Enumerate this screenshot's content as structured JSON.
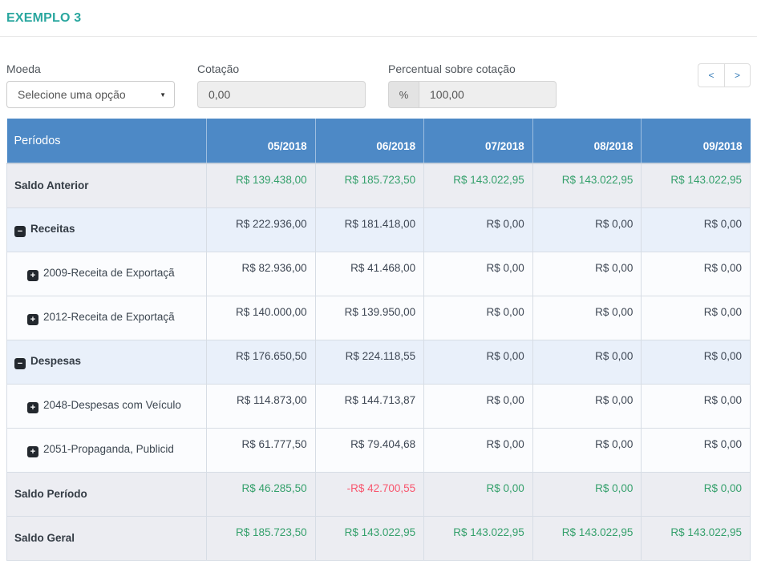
{
  "title": "EXEMPLO 3",
  "colors": {
    "header_blue": "#4d89c6",
    "title_teal": "#2aa79f",
    "green": "#34a06b",
    "red": "#f8566e",
    "link_blue": "#337ab7"
  },
  "form": {
    "moeda": {
      "label": "Moeda",
      "selected": "Selecione uma opção"
    },
    "cotacao": {
      "label": "Cotação",
      "value": "0,00"
    },
    "percentual": {
      "label": "Percentual sobre cotação",
      "addon": "%",
      "value": "100,00"
    },
    "prev_label": "<",
    "next_label": ">"
  },
  "table": {
    "header": {
      "label": "Períodos",
      "periods": [
        "05/2018",
        "06/2018",
        "07/2018",
        "08/2018",
        "09/2018"
      ]
    },
    "rows": [
      {
        "kind": "saldo",
        "icon": null,
        "label": "Saldo Anterior",
        "values": [
          "R$ 139.438,00",
          "R$ 185.723,50",
          "R$ 143.022,95",
          "R$ 143.022,95",
          "R$ 143.022,95"
        ],
        "value_colors": [
          "green",
          "green",
          "green",
          "green",
          "green"
        ]
      },
      {
        "kind": "group",
        "icon": "collapse",
        "label": "Receitas",
        "values": [
          "R$ 222.936,00",
          "R$ 181.418,00",
          "R$ 0,00",
          "R$ 0,00",
          "R$ 0,00"
        ],
        "value_colors": [
          "default",
          "default",
          "default",
          "default",
          "default"
        ]
      },
      {
        "kind": "child",
        "icon": "expand",
        "label": "2009-Receita de Exportaçã",
        "values": [
          "R$ 82.936,00",
          "R$ 41.468,00",
          "R$ 0,00",
          "R$ 0,00",
          "R$ 0,00"
        ],
        "value_colors": [
          "default",
          "default",
          "default",
          "default",
          "default"
        ]
      },
      {
        "kind": "child",
        "icon": "expand",
        "label": "2012-Receita de Exportaçã",
        "values": [
          "R$ 140.000,00",
          "R$ 139.950,00",
          "R$ 0,00",
          "R$ 0,00",
          "R$ 0,00"
        ],
        "value_colors": [
          "default",
          "default",
          "default",
          "default",
          "default"
        ]
      },
      {
        "kind": "group",
        "icon": "collapse",
        "label": "Despesas",
        "values": [
          "R$ 176.650,50",
          "R$ 224.118,55",
          "R$ 0,00",
          "R$ 0,00",
          "R$ 0,00"
        ],
        "value_colors": [
          "default",
          "default",
          "default",
          "default",
          "default"
        ]
      },
      {
        "kind": "child",
        "icon": "expand",
        "label": "2048-Despesas com Veículo",
        "values": [
          "R$ 114.873,00",
          "R$ 144.713,87",
          "R$ 0,00",
          "R$ 0,00",
          "R$ 0,00"
        ],
        "value_colors": [
          "default",
          "default",
          "default",
          "default",
          "default"
        ]
      },
      {
        "kind": "child",
        "icon": "expand",
        "label": "2051-Propaganda, Publicid",
        "values": [
          "R$ 61.777,50",
          "R$ 79.404,68",
          "R$ 0,00",
          "R$ 0,00",
          "R$ 0,00"
        ],
        "value_colors": [
          "default",
          "default",
          "default",
          "default",
          "default"
        ]
      },
      {
        "kind": "saldo",
        "icon": null,
        "label": "Saldo Período",
        "values": [
          "R$ 46.285,50",
          "-R$ 42.700,55",
          "R$ 0,00",
          "R$ 0,00",
          "R$ 0,00"
        ],
        "value_colors": [
          "green",
          "red",
          "green",
          "green",
          "green"
        ]
      },
      {
        "kind": "saldo",
        "icon": null,
        "label": "Saldo Geral",
        "values": [
          "R$ 185.723,50",
          "R$ 143.022,95",
          "R$ 143.022,95",
          "R$ 143.022,95",
          "R$ 143.022,95"
        ],
        "value_colors": [
          "green",
          "green",
          "green",
          "green",
          "green"
        ]
      }
    ]
  }
}
